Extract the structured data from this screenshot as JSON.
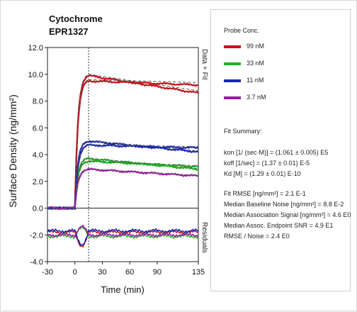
{
  "chart_data": {
    "type": "line",
    "title": [
      "Cytochrome",
      "EPR1327"
    ],
    "xlabel": "Time (min)",
    "ylabel": "Surface Density (ng/mm²)",
    "xlim": [
      -30,
      135
    ],
    "ylim": [
      -4,
      12
    ],
    "xticks": [
      -30,
      0,
      30,
      60,
      90,
      135
    ],
    "yticks": [
      "-4.0",
      "-2.0",
      "0.0",
      "2.0",
      "4.0",
      "6.0",
      "8.0",
      "10.0",
      "12.0"
    ],
    "injection_end_x": 15,
    "upper_panel_label": "Data + Fit",
    "lower_panel_label": "Residuals",
    "legend_title": "Probe Conc.",
    "series": [
      {
        "name": "99 nM",
        "color": "#c0141a",
        "plateau": [
          9.9,
          9.5
        ],
        "end": [
          8.6,
          9.2
        ],
        "residual": -1.8
      },
      {
        "name": "33 nM",
        "color": "#22b022",
        "plateau": [
          3.7,
          3.5
        ],
        "end": [
          2.9,
          3.1
        ],
        "residual": -2.1
      },
      {
        "name": "11 nM",
        "color": "#1a28b4",
        "plateau": [
          5.0,
          4.7
        ],
        "end": [
          4.2,
          4.5
        ],
        "residual": -1.7
      },
      {
        "name": "3.7 nM",
        "color": "#9a1aa8",
        "plateau": [
          2.9
        ],
        "end": [
          2.4
        ],
        "residual": -2.0
      }
    ],
    "fit_color": "#555555"
  },
  "fit_summary": {
    "title": "Fit Summary:",
    "lines": [
      "kon  [1/ (sec·M)]  =  (1.061 ± 0.005) E5",
      "koff  [1/sec]  =  (1.37 ± 0.01) E-5",
      "Kd  [M]  =  (1.29 ± 0.01) E-10",
      "Fit RMSE [ng/mm²]  =  2.1 E-1",
      "Median Baseline Noise [ng/mm²]  =  8.8 E-2",
      "Median Association Signal [ng/mm²]  =  4.6 E0",
      "Median Assoc. Endpoint SNR  =  4.9 E1",
      "RMSE / Noise  =  2.4 E0"
    ]
  }
}
